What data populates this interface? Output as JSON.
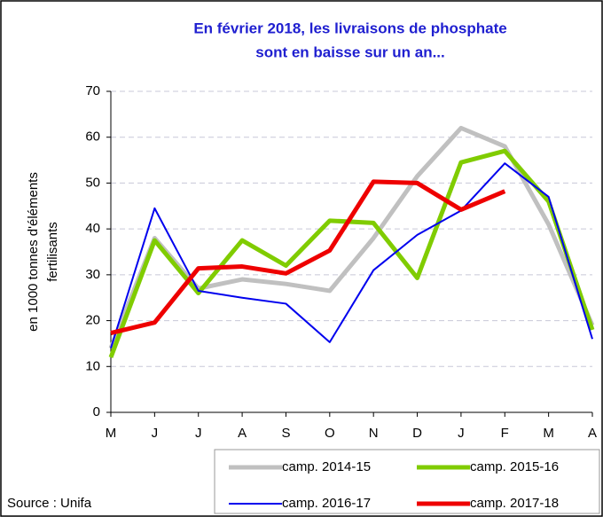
{
  "chart_data": {
    "type": "line",
    "title": [
      "En février 2018, les livraisons de phosphate",
      "sont en baisse sur un an..."
    ],
    "y_label": [
      "en 1000 tonnes d'éléments",
      "fertilisants"
    ],
    "source": "Source : Unifa",
    "categories": [
      "M",
      "J",
      "J",
      "A",
      "S",
      "O",
      "N",
      "D",
      "J",
      "F",
      "M",
      "A"
    ],
    "ylim": [
      0,
      70
    ],
    "yticks": [
      0,
      10,
      20,
      30,
      40,
      50,
      60,
      70
    ],
    "grid": true,
    "series": [
      {
        "name": "camp. 2014-15",
        "color": "#c0c0c0",
        "width": 5,
        "values": [
          14,
          38,
          27,
          29,
          28,
          26.5,
          38,
          51.5,
          62,
          58,
          41,
          19
        ]
      },
      {
        "name": "camp. 2015-16",
        "color": "#80cc00",
        "width": 5,
        "values": [
          12,
          37.5,
          26,
          37.5,
          32,
          41.8,
          41.3,
          29.3,
          54.5,
          57,
          46,
          18
        ]
      },
      {
        "name": "camp. 2016-17",
        "color": "#0000ee",
        "width": 2,
        "values": [
          14,
          44.5,
          26.5,
          25,
          23.7,
          15.3,
          31,
          38.7,
          44,
          54.3,
          47,
          16
        ]
      },
      {
        "name": "camp. 2017-18",
        "color": "#ee0000",
        "width": 5,
        "values": [
          17.3,
          19.6,
          31.4,
          31.8,
          30.3,
          35.3,
          50.3,
          50,
          44.2,
          48.2,
          null,
          null
        ]
      }
    ]
  }
}
